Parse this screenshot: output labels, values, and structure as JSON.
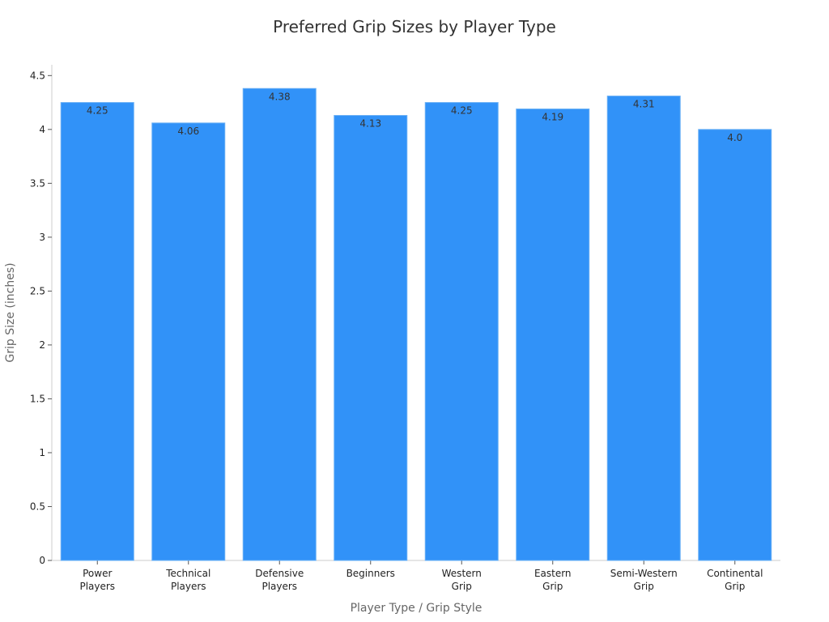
{
  "chart_data": {
    "type": "bar",
    "title": "Preferred Grip Sizes by Player Type",
    "xlabel": "Player Type / Grip Style",
    "ylabel": "Grip Size (inches)",
    "categories": [
      [
        "Power",
        "Players"
      ],
      [
        "Technical",
        "Players"
      ],
      [
        "Defensive",
        "Players"
      ],
      [
        "Beginners"
      ],
      [
        "Western",
        "Grip"
      ],
      [
        "Eastern",
        "Grip"
      ],
      [
        "Semi-Western",
        "Grip"
      ],
      [
        "Continental",
        "Grip"
      ]
    ],
    "values": [
      4.25,
      4.06,
      4.38,
      4.13,
      4.25,
      4.19,
      4.31,
      4.0
    ],
    "data_labels": [
      "4.25",
      "4.06",
      "4.38",
      "4.13",
      "4.25",
      "4.19",
      "4.31",
      "4.0"
    ],
    "ylim": [
      0,
      4.6
    ],
    "yticks": [
      0,
      0.5,
      1,
      1.5,
      2,
      2.5,
      3,
      3.5,
      4,
      4.5
    ],
    "ytick_labels": [
      "0",
      "0.5",
      "1",
      "1.5",
      "2",
      "2.5",
      "3",
      "3.5",
      "4",
      "4.5"
    ],
    "grid": false,
    "bar_color": "#3192f8",
    "bar_edge_color": "#6ab0f5"
  }
}
